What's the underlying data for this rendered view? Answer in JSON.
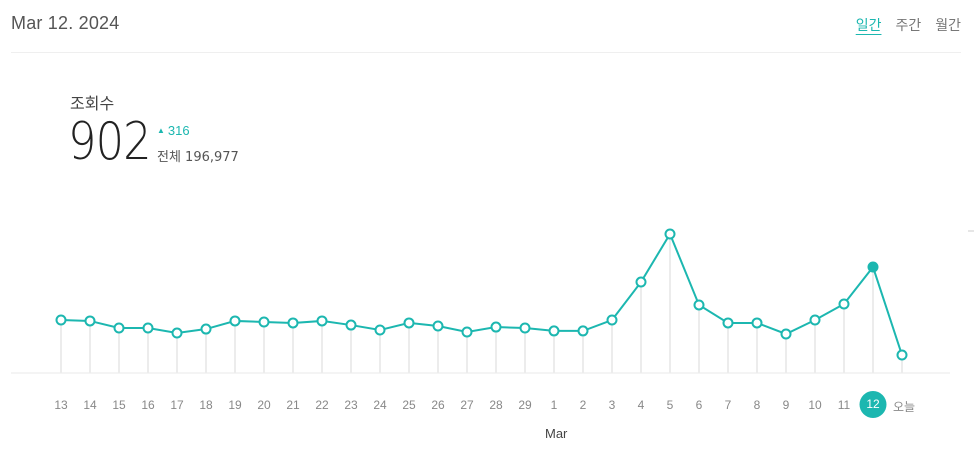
{
  "header": {
    "date": "Mar 12. 2024",
    "tabs": [
      {
        "label": "일간",
        "active": true
      },
      {
        "label": "주간",
        "active": false
      },
      {
        "label": "월간",
        "active": false
      }
    ]
  },
  "stat": {
    "label": "조회수",
    "value": "902",
    "delta_icon": "triangle-up-icon",
    "delta": "316",
    "total": "전체 196,977"
  },
  "colors": {
    "accent": "#1cb7b0",
    "grid": "#ececec",
    "label": "#888888"
  },
  "chart_data": {
    "type": "line",
    "title": "조회수",
    "xlabel": "Mar",
    "ylabel": "",
    "categories": [
      "13",
      "14",
      "15",
      "16",
      "17",
      "18",
      "19",
      "20",
      "21",
      "22",
      "23",
      "24",
      "25",
      "26",
      "27",
      "28",
      "29",
      "1",
      "2",
      "3",
      "4",
      "5",
      "6",
      "7",
      "8",
      "9",
      "10",
      "11",
      "12",
      "오늘"
    ],
    "values": [
      451,
      443,
      383,
      383,
      340,
      374,
      443,
      434,
      426,
      443,
      408,
      366,
      426,
      400,
      349,
      391,
      383,
      358,
      358,
      451,
      774,
      1183,
      579,
      426,
      426,
      332,
      451,
      587,
      902,
      153
    ],
    "selected_index": 28,
    "selected_label": "12",
    "grid": "vertical drop lines",
    "legend": "none"
  }
}
